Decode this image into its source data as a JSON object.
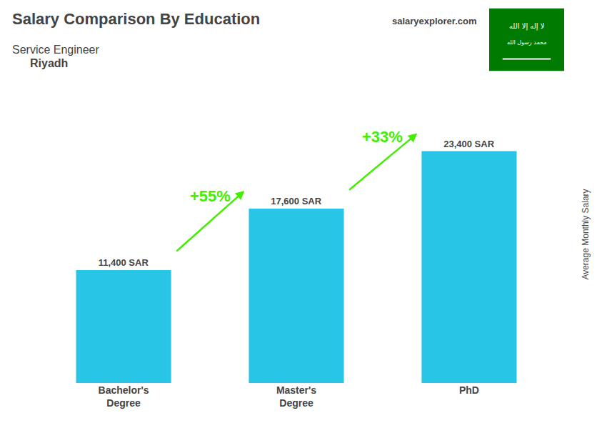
{
  "chart_data": {
    "type": "bar",
    "title": "Salary Comparison By Education",
    "subtitle": "Service Engineer",
    "city": "Riyadh",
    "source": "salaryexplorer.com",
    "ylabel": "Average Monthly Salary",
    "categories": [
      "Bachelor's\nDegree",
      "Master's\nDegree",
      "PhD"
    ],
    "values": [
      11400,
      17600,
      23400
    ],
    "value_labels": [
      "11,400 SAR",
      "17,600 SAR",
      "23,400 SAR"
    ],
    "data_labels": true,
    "color": "#29c5e6",
    "annotations": [
      {
        "text": "+55%",
        "color": "#44ee00"
      },
      {
        "text": "+33%",
        "color": "#44ee00"
      }
    ],
    "flag": {
      "texts": [
        "لا إله إلا الله",
        "محمد رسول الله"
      ],
      "color": "#007a00"
    },
    "ylim": [
      0,
      30000
    ],
    "tick_labels": "x",
    "grid": false
  }
}
